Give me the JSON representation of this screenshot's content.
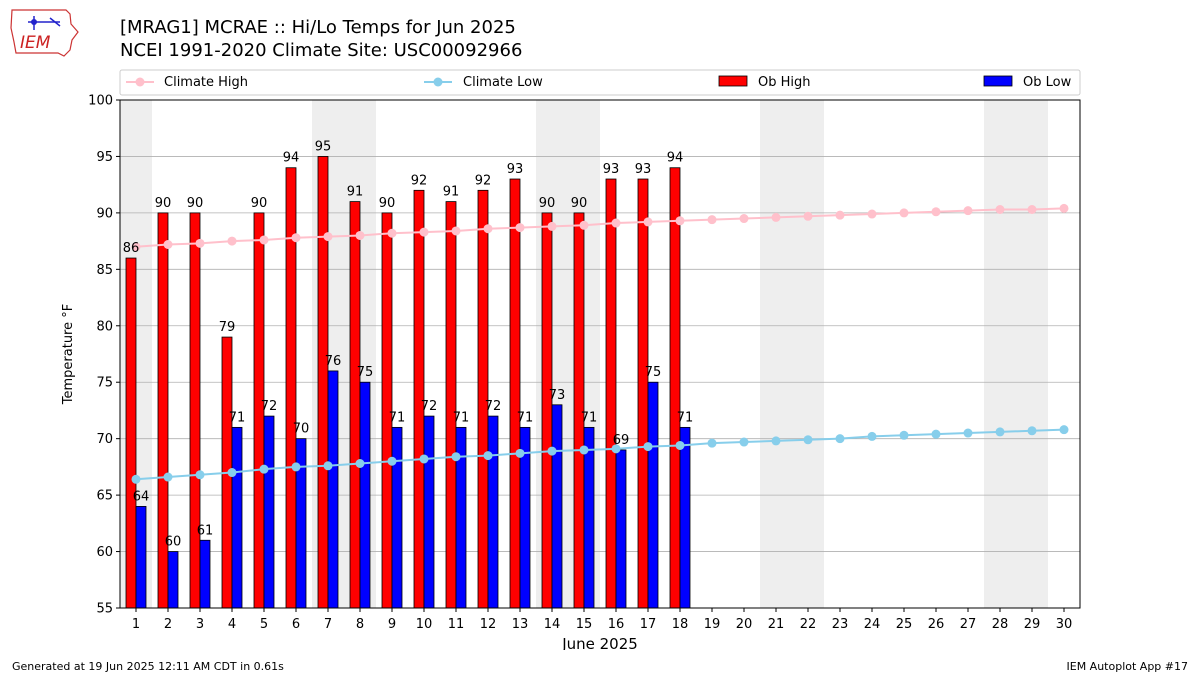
{
  "header": {
    "title_line1": "[MRAG1] MCRAE :: Hi/Lo Temps for Jun 2025",
    "title_line2": "NCEI 1991-2020 Climate Site: USC00092966",
    "logo_text": "IEM"
  },
  "footer": {
    "generated": "Generated at 19 Jun 2025 12:11 AM CDT in 0.61s",
    "app": "IEM Autoplot App #17"
  },
  "legend": {
    "climate_high": "Climate High",
    "climate_low": "Climate Low",
    "ob_high": "Ob High",
    "ob_low": "Ob Low"
  },
  "colors": {
    "ob_high": "#ff0000",
    "ob_low": "#0000ff",
    "climate_high": "#ffc0cb",
    "climate_low": "#87ceeb",
    "weekend_shade": "#eeeeee",
    "grid": "#b0b0b0"
  },
  "chart_data": {
    "type": "bar",
    "xlabel": "June 2025",
    "ylabel": "Temperature °F",
    "ylim": [
      55,
      100
    ],
    "yticks": [
      55,
      60,
      65,
      70,
      75,
      80,
      85,
      90,
      95,
      100
    ],
    "days": [
      1,
      2,
      3,
      4,
      5,
      6,
      7,
      8,
      9,
      10,
      11,
      12,
      13,
      14,
      15,
      16,
      17,
      18,
      19,
      20,
      21,
      22,
      23,
      24,
      25,
      26,
      27,
      28,
      29,
      30
    ],
    "weekend_days": [
      1,
      7,
      8,
      14,
      15,
      21,
      22,
      28,
      29
    ],
    "grid": true,
    "legend_position": "top",
    "series": [
      {
        "name": "Ob High",
        "kind": "bar",
        "values": [
          86,
          90,
          90,
          79,
          90,
          94,
          95,
          91,
          90,
          92,
          91,
          92,
          93,
          90,
          90,
          93,
          93,
          94
        ]
      },
      {
        "name": "Ob Low",
        "kind": "bar",
        "values": [
          64,
          60,
          61,
          71,
          72,
          70,
          76,
          75,
          71,
          72,
          71,
          72,
          71,
          73,
          71,
          69,
          75,
          71
        ]
      },
      {
        "name": "Climate High",
        "kind": "line",
        "values": [
          87.0,
          87.2,
          87.3,
          87.5,
          87.6,
          87.8,
          87.9,
          88.0,
          88.2,
          88.3,
          88.4,
          88.6,
          88.7,
          88.8,
          88.9,
          89.1,
          89.2,
          89.3,
          89.4,
          89.5,
          89.6,
          89.7,
          89.8,
          89.9,
          90.0,
          90.1,
          90.2,
          90.3,
          90.3,
          90.4
        ]
      },
      {
        "name": "Climate Low",
        "kind": "line",
        "values": [
          66.4,
          66.6,
          66.8,
          67.0,
          67.3,
          67.5,
          67.6,
          67.8,
          68.0,
          68.2,
          68.4,
          68.5,
          68.7,
          68.9,
          69.0,
          69.1,
          69.3,
          69.4,
          69.6,
          69.7,
          69.8,
          69.9,
          70.0,
          70.2,
          70.3,
          70.4,
          70.5,
          70.6,
          70.7,
          70.8
        ]
      }
    ]
  }
}
